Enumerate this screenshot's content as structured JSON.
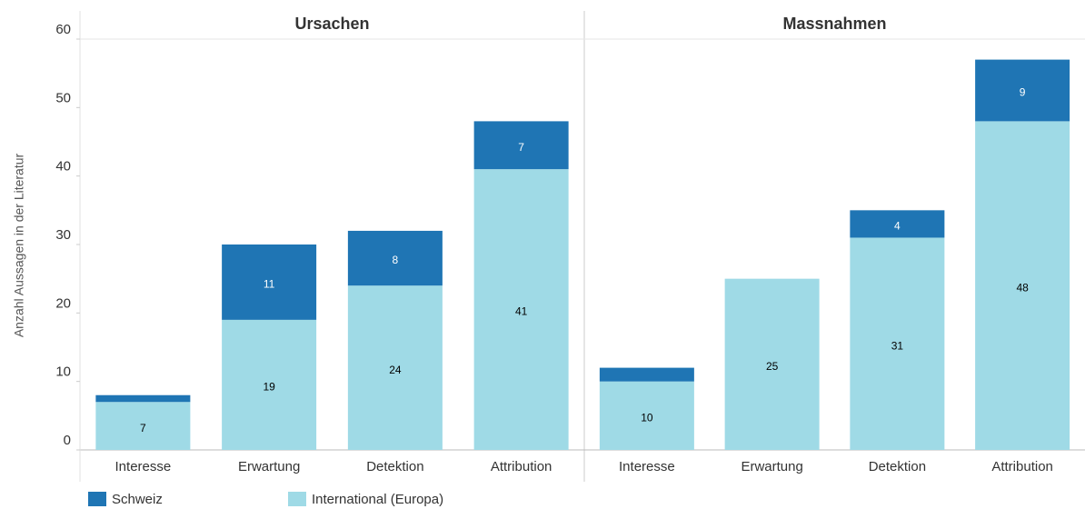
{
  "chart_data": [
    {
      "type": "stacked_bar",
      "title": "Ursachen",
      "ylabel": "Anzahl Aussagen in der Literatur",
      "categories": [
        "Interesse",
        "Erwartung",
        "Detektion",
        "Attribution"
      ],
      "series": [
        {
          "name": "International (Europa)",
          "color": "#9fdae6",
          "values": [
            7,
            19,
            24,
            41
          ]
        },
        {
          "name": "Schweiz",
          "color": "#1f75b4",
          "values": [
            1,
            11,
            8,
            7
          ]
        }
      ],
      "ylim": [
        0,
        60
      ],
      "yticks": [
        0,
        10,
        20,
        30,
        40,
        50,
        60
      ]
    },
    {
      "type": "stacked_bar",
      "title": "Massnahmen",
      "categories": [
        "Interesse",
        "Erwartung",
        "Detektion",
        "Attribution"
      ],
      "series": [
        {
          "color": "#9fdae6",
          "values": [
            10,
            25,
            31,
            48
          ]
        },
        {
          "color": "#1f75b4",
          "values": [
            2,
            null,
            4,
            9
          ]
        }
      ],
      "ylim": [
        0,
        60
      ]
    }
  ]
}
